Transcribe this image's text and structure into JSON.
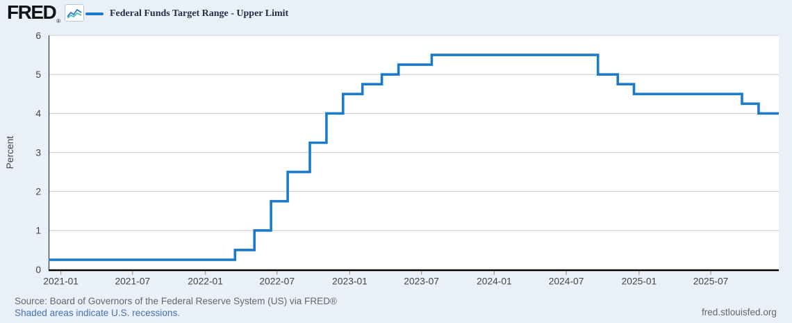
{
  "header": {
    "logo_text": "FRED",
    "logo_registered": "®",
    "legend": {
      "label": "Federal Funds Target Range - Upper Limit"
    }
  },
  "chart_data": {
    "type": "line",
    "line_style": "step-after",
    "title": "Federal Funds Target Range - Upper Limit",
    "ylabel": "Percent",
    "xlabel": "",
    "ylim": [
      0,
      6
    ],
    "yticks": [
      0,
      1,
      2,
      3,
      4,
      5,
      6
    ],
    "grid": "horizontal",
    "legend_position": "top",
    "x_domain": [
      "2020-12-01",
      "2025-12-20"
    ],
    "xticks": [
      {
        "label": "2021-01",
        "date": "2021-01-01"
      },
      {
        "label": "2021-07",
        "date": "2021-07-01"
      },
      {
        "label": "2022-01",
        "date": "2022-01-01"
      },
      {
        "label": "2022-07",
        "date": "2022-07-01"
      },
      {
        "label": "2023-01",
        "date": "2023-01-01"
      },
      {
        "label": "2023-07",
        "date": "2023-07-01"
      },
      {
        "label": "2024-01",
        "date": "2024-01-01"
      },
      {
        "label": "2024-07",
        "date": "2024-07-01"
      },
      {
        "label": "2025-01",
        "date": "2025-01-01"
      },
      {
        "label": "2025-07",
        "date": "2025-07-01"
      }
    ],
    "series": [
      {
        "name": "Federal Funds Target Range - Upper Limit",
        "units": "Percent",
        "color": "#1b7ac9",
        "points": [
          {
            "date": "2020-12-01",
            "value": 0.25
          },
          {
            "date": "2022-03-17",
            "value": 0.5
          },
          {
            "date": "2022-05-05",
            "value": 1.0
          },
          {
            "date": "2022-06-16",
            "value": 1.75
          },
          {
            "date": "2022-07-28",
            "value": 2.5
          },
          {
            "date": "2022-09-22",
            "value": 3.25
          },
          {
            "date": "2022-11-03",
            "value": 4.0
          },
          {
            "date": "2022-12-15",
            "value": 4.5
          },
          {
            "date": "2023-02-02",
            "value": 4.75
          },
          {
            "date": "2023-03-23",
            "value": 5.0
          },
          {
            "date": "2023-05-04",
            "value": 5.25
          },
          {
            "date": "2023-07-27",
            "value": 5.5
          },
          {
            "date": "2024-09-19",
            "value": 5.0
          },
          {
            "date": "2024-11-08",
            "value": 4.75
          },
          {
            "date": "2024-12-19",
            "value": 4.5
          },
          {
            "date": "2025-09-18",
            "value": 4.25
          },
          {
            "date": "2025-10-30",
            "value": 4.0
          }
        ]
      }
    ]
  },
  "footer": {
    "source_line": "Source: Board of Governors of the Federal Reserve System (US) via FRED®",
    "recession_note": "Shaded areas indicate U.S. recessions.",
    "site_link": "fred.stlouisfed.org"
  },
  "colors": {
    "line": "#1b7ac9",
    "page_bg": "#eaf0f8",
    "plot_bg": "#ffffff",
    "grid": "#cccccc",
    "axis": "#000000",
    "spine": "#333333",
    "tick_mark": "#999999",
    "tick_label": "#444444",
    "source_text": "#65676b",
    "link": "#4471b8"
  }
}
